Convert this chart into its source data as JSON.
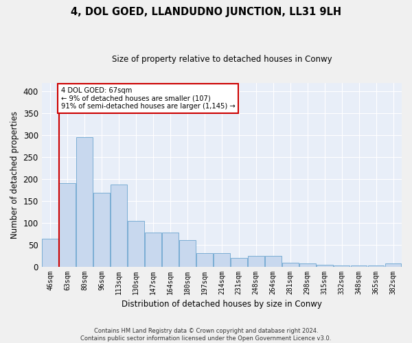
{
  "title": "4, DOL GOED, LLANDUDNO JUNCTION, LL31 9LH",
  "subtitle": "Size of property relative to detached houses in Conwy",
  "xlabel": "Distribution of detached houses by size in Conwy",
  "ylabel": "Number of detached properties",
  "bar_color": "#c8d8ee",
  "bar_edge_color": "#7aadd4",
  "background_color": "#e8eef8",
  "grid_color": "#ffffff",
  "fig_background": "#f0f0f0",
  "categories": [
    "46sqm",
    "63sqm",
    "80sqm",
    "96sqm",
    "113sqm",
    "130sqm",
    "147sqm",
    "164sqm",
    "180sqm",
    "197sqm",
    "214sqm",
    "231sqm",
    "248sqm",
    "264sqm",
    "281sqm",
    "298sqm",
    "315sqm",
    "332sqm",
    "348sqm",
    "365sqm",
    "382sqm"
  ],
  "values": [
    63,
    190,
    295,
    168,
    188,
    105,
    78,
    78,
    60,
    31,
    31,
    20,
    25,
    25,
    9,
    7,
    4,
    3,
    3,
    3,
    7
  ],
  "marker_color": "#cc0000",
  "annotation_line1": "4 DOL GOED: 67sqm",
  "annotation_line2": "← 9% of detached houses are smaller (107)",
  "annotation_line3": "91% of semi-detached houses are larger (1,145) →",
  "annotation_box_color": "#ffffff",
  "annotation_box_edge_color": "#cc0000",
  "footer_text": "Contains HM Land Registry data © Crown copyright and database right 2024.\nContains public sector information licensed under the Open Government Licence v3.0.",
  "ylim": [
    0,
    420
  ],
  "yticks": [
    0,
    50,
    100,
    150,
    200,
    250,
    300,
    350,
    400
  ]
}
